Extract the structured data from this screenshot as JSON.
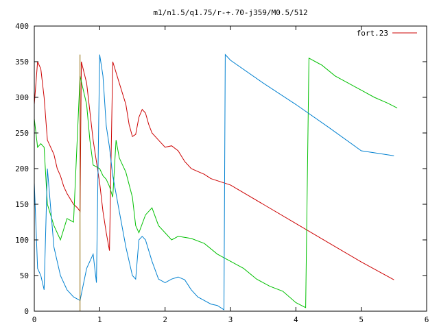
{
  "chart_data": {
    "type": "line",
    "title": "m1/n1.5/q1.75/r-+.70-j359/M0.5/512",
    "xlabel": "",
    "ylabel": "",
    "xlim": [
      0,
      6
    ],
    "ylim": [
      0,
      400
    ],
    "grid": false,
    "legend_position": "top-right",
    "x_ticks": [
      "0",
      "1",
      "2",
      "3",
      "4",
      "5",
      "6"
    ],
    "y_ticks": [
      "0",
      "50",
      "100",
      "150",
      "200",
      "250",
      "300",
      "350",
      "400"
    ],
    "series": [
      {
        "name": "fort.23",
        "color": "#cc0000",
        "x": [
          0.0,
          0.05,
          0.1,
          0.15,
          0.2,
          0.3,
          0.35,
          0.4,
          0.45,
          0.5,
          0.6,
          0.66,
          0.7,
          0.72,
          0.8,
          0.9,
          1.0,
          1.05,
          1.1,
          1.15,
          1.2,
          1.3,
          1.4,
          1.45,
          1.5,
          1.55,
          1.6,
          1.65,
          1.7,
          1.75,
          1.8,
          1.9,
          2.0,
          2.1,
          2.2,
          2.3,
          2.4,
          2.5,
          2.6,
          2.7,
          2.8,
          2.9,
          3.0,
          3.5,
          4.0,
          4.5,
          5.0,
          5.5
        ],
        "values": [
          290,
          350,
          340,
          300,
          240,
          220,
          200,
          190,
          175,
          165,
          150,
          145,
          140,
          350,
          320,
          240,
          180,
          140,
          110,
          85,
          350,
          320,
          290,
          262,
          245,
          248,
          272,
          283,
          278,
          262,
          250,
          240,
          230,
          232,
          225,
          210,
          200,
          196,
          192,
          186,
          183,
          180,
          177,
          150,
          123,
          96,
          69,
          44
        ]
      },
      {
        "name": "",
        "color": "#00c000",
        "x": [
          0.0,
          0.05,
          0.1,
          0.15,
          0.2,
          0.3,
          0.4,
          0.5,
          0.6,
          0.7,
          0.75,
          0.8,
          0.85,
          0.9,
          1.0,
          1.05,
          1.1,
          1.15,
          1.2,
          1.25,
          1.3,
          1.4,
          1.5,
          1.55,
          1.6,
          1.7,
          1.8,
          1.9,
          2.0,
          2.1,
          2.2,
          2.4,
          2.6,
          2.8,
          3.0,
          3.2,
          3.4,
          3.6,
          3.8,
          4.0,
          4.15,
          4.2,
          4.3,
          4.4,
          4.6,
          4.8,
          5.0,
          5.2,
          5.4,
          5.55
        ],
        "values": [
          270,
          230,
          235,
          230,
          150,
          120,
          100,
          130,
          125,
          330,
          310,
          290,
          240,
          205,
          200,
          190,
          185,
          175,
          160,
          240,
          215,
          195,
          160,
          120,
          110,
          135,
          145,
          120,
          110,
          100,
          105,
          102,
          95,
          80,
          70,
          60,
          45,
          35,
          28,
          12,
          5,
          355,
          350,
          345,
          330,
          320,
          310,
          300,
          292,
          285
        ]
      },
      {
        "name": "",
        "color": "#0080d0",
        "x": [
          0.0,
          0.05,
          0.1,
          0.15,
          0.2,
          0.3,
          0.4,
          0.5,
          0.6,
          0.7,
          0.8,
          0.9,
          0.95,
          1.0,
          1.05,
          1.1,
          1.15,
          1.2,
          1.3,
          1.4,
          1.5,
          1.55,
          1.6,
          1.65,
          1.7,
          1.8,
          1.9,
          2.0,
          2.1,
          2.2,
          2.3,
          2.4,
          2.5,
          2.6,
          2.7,
          2.8,
          2.9,
          2.92,
          3.0,
          3.5,
          4.0,
          4.5,
          5.0,
          5.5
        ],
        "values": [
          180,
          60,
          50,
          30,
          200,
          90,
          50,
          30,
          20,
          15,
          60,
          80,
          40,
          360,
          330,
          260,
          230,
          190,
          140,
          90,
          50,
          45,
          100,
          105,
          100,
          70,
          45,
          40,
          45,
          48,
          44,
          30,
          20,
          15,
          10,
          8,
          2,
          360,
          352,
          320,
          290,
          258,
          225,
          218
        ]
      },
      {
        "name": "",
        "color": "#8b6400",
        "x": [
          0.7,
          0.7
        ],
        "values": [
          0,
          360
        ]
      }
    ]
  }
}
